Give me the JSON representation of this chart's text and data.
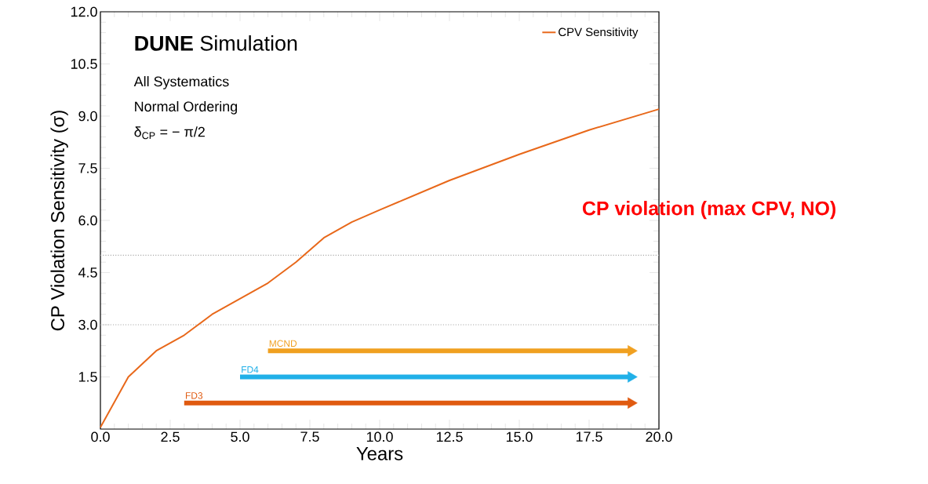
{
  "chart_data": {
    "type": "line",
    "title": "**DUNE** Simulation",
    "xlabel": "Years",
    "ylabel": "CP Violation Sensitivity (σ)",
    "annotations": [
      "All Systematics",
      "Normal Ordering",
      "δ$_{CP}$ = − π/2",
      "CP violation (max CPV, NO)"
    ],
    "series": [
      {
        "name": "CPV Sensitivity",
        "color": "#e8681a",
        "x": [
          0,
          1,
          2,
          3,
          3.5,
          4,
          5,
          6,
          7,
          8,
          9,
          10,
          12.5,
          15,
          17.5,
          20
        ],
        "values": [
          0.05,
          1.5,
          2.25,
          2.7,
          3.0,
          3.3,
          3.75,
          4.2,
          4.8,
          5.5,
          5.95,
          6.3,
          7.15,
          7.9,
          8.6,
          9.2
        ]
      },
      {
        "name": "MCND",
        "color": "#f0a020",
        "x": [
          6,
          19
        ],
        "values": [
          2.25,
          2.25
        ],
        "marker": "triangle"
      },
      {
        "name": "FD4",
        "color": "#20b0e8",
        "x": [
          5,
          19
        ],
        "values": [
          1.5,
          1.5
        ],
        "marker": "triangle"
      },
      {
        "name": "FD3",
        "color": "#e05a10",
        "x": [
          3,
          19
        ],
        "values": [
          0.75,
          0.75
        ],
        "marker": "triangle"
      }
    ],
    "xlim": [
      0,
      20
    ],
    "ylim": [
      0,
      12
    ],
    "xticks": [
      {
        "value": 0,
        "label": "0.0"
      },
      2.5,
      {
        "value": 5,
        "label": "5.0"
      },
      7.5,
      {
        "value": 10,
        "label": "10.0"
      },
      12.5,
      {
        "value": 15,
        "label": "15.0"
      },
      17.5,
      {
        "value": 20,
        "label": "20.0"
      }
    ],
    "yticks": [
      1.5,
      {
        "value": 3,
        "label": "3.0"
      },
      4.5,
      {
        "value": 6,
        "label": "6.0"
      },
      7.5,
      {
        "value": 9,
        "label": "9.0"
      },
      10.5,
      {
        "value": 12,
        "label": "12.0"
      }
    ],
    "ref_lines": [
      {
        "axis": "y",
        "value": 3,
        "color": "#aaaaaa",
        "line_style": "dotted"
      },
      {
        "axis": "y",
        "value": 5,
        "color": "#aaaaaa",
        "line_style": "dotted"
      }
    ],
    "legend": "top right",
    "grid": false,
    "line_style": "solid",
    "marker": "none"
  }
}
